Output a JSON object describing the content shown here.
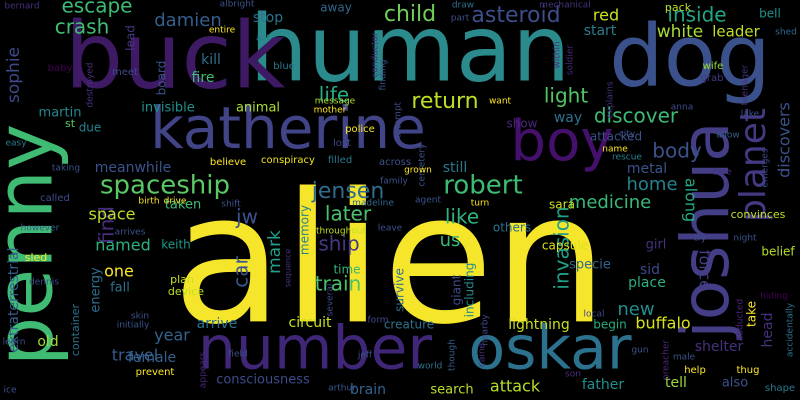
{
  "background": "#000000",
  "words": [
    {
      "text": "alien",
      "color": "#f6e62b"
    },
    {
      "text": "human",
      "color": "#2b8b8c"
    },
    {
      "text": "dog",
      "color": "#3b518b"
    },
    {
      "text": "buck",
      "color": "#3e1a64"
    },
    {
      "text": "katherine",
      "color": "#414487"
    },
    {
      "text": "penny",
      "color": "#3fbb74"
    },
    {
      "text": "joshua",
      "color": "#433e85"
    },
    {
      "text": "boy",
      "color": "#44106c"
    },
    {
      "text": "number",
      "color": "#3f2676"
    },
    {
      "text": "oskar",
      "color": "#2c728e"
    },
    {
      "text": "planet",
      "color": "#443983"
    },
    {
      "text": "spaceship",
      "color": "#5ac864"
    },
    {
      "text": "robert",
      "color": "#3dbc74"
    },
    {
      "text": "jensen",
      "color": "#2f6c8e"
    },
    {
      "text": "child",
      "color": "#6fcf57"
    },
    {
      "text": "asteroid",
      "color": "#3d4e8a"
    },
    {
      "text": "crash",
      "color": "#42be71"
    },
    {
      "text": "escape",
      "color": "#3cbb75"
    },
    {
      "text": "damien",
      "color": "#355e8d"
    },
    {
      "text": "sophie",
      "color": "#3f4889"
    },
    {
      "text": "return",
      "color": "#bddf26"
    },
    {
      "text": "light",
      "color": "#52c569"
    },
    {
      "text": "life",
      "color": "#25ac82"
    },
    {
      "text": "discover",
      "color": "#3bbb75"
    },
    {
      "text": "inside",
      "color": "#21a685"
    },
    {
      "text": "white",
      "color": "#a5db36"
    },
    {
      "text": "leader",
      "color": "#c2df23"
    },
    {
      "text": "red",
      "color": "#cde11d"
    },
    {
      "text": "start",
      "color": "#2a7b8e"
    },
    {
      "text": "discovers",
      "color": "#3b528b"
    },
    {
      "text": "body",
      "color": "#3a538b"
    },
    {
      "text": "home",
      "color": "#26828e"
    },
    {
      "text": "metal",
      "color": "#3b528b"
    },
    {
      "text": "medicine",
      "color": "#38b977"
    },
    {
      "text": "invasion",
      "color": "#1fa187"
    },
    {
      "text": "along",
      "color": "#22a884"
    },
    {
      "text": "like",
      "color": "#2fb47c"
    },
    {
      "text": "us",
      "color": "#35b779"
    },
    {
      "text": "train",
      "color": "#4ac16d"
    },
    {
      "text": "ship",
      "color": "#453781"
    },
    {
      "text": "car",
      "color": "#3a548c"
    },
    {
      "text": "mark",
      "color": "#1fa088"
    },
    {
      "text": "jw",
      "color": "#3b528b"
    },
    {
      "text": "later",
      "color": "#4ac16d"
    },
    {
      "text": "find",
      "color": "#472d7b"
    },
    {
      "text": "space",
      "color": "#bade28"
    },
    {
      "text": "named",
      "color": "#2db27d"
    },
    {
      "text": "one",
      "color": "#fde725"
    },
    {
      "text": "buffalo",
      "color": "#d8e219"
    },
    {
      "text": "new",
      "color": "#228c8d"
    },
    {
      "text": "place",
      "color": "#29af7f"
    },
    {
      "text": "force",
      "color": "#433e85"
    },
    {
      "text": "head",
      "color": "#46307e"
    },
    {
      "text": "take",
      "color": "#fde725"
    },
    {
      "text": "fire",
      "color": "#3fbc73"
    },
    {
      "text": "kill",
      "color": "#2e6f8e"
    },
    {
      "text": "stop",
      "color": "#2c738e"
    },
    {
      "text": "away",
      "color": "#31678e"
    },
    {
      "text": "bell",
      "color": "#20928c"
    },
    {
      "text": "pack",
      "color": "#bddf26"
    },
    {
      "text": "year",
      "color": "#33628d"
    },
    {
      "text": "female",
      "color": "#355f8d"
    },
    {
      "text": "travel",
      "color": "#355f8d"
    },
    {
      "text": "consciousness",
      "color": "#3e4a89"
    },
    {
      "text": "brain",
      "color": "#33638d"
    },
    {
      "text": "attack",
      "color": "#b5de2b"
    },
    {
      "text": "father",
      "color": "#21908d"
    },
    {
      "text": "tell",
      "color": "#9fda3a"
    },
    {
      "text": "also",
      "color": "#3b528b"
    },
    {
      "text": "lightning",
      "color": "#c8e020"
    },
    {
      "text": "begin",
      "color": "#25ab82"
    },
    {
      "text": "creature",
      "color": "#2d718e"
    },
    {
      "text": "circuit",
      "color": "#cae11f"
    },
    {
      "text": "arrive",
      "color": "#2c738e"
    },
    {
      "text": "energy",
      "color": "#2e6d8e"
    },
    {
      "text": "extraterrestrial",
      "color": "#355f8d"
    },
    {
      "text": "martin",
      "color": "#24878e"
    },
    {
      "text": "meanwhile",
      "color": "#3a538b"
    },
    {
      "text": "invisible",
      "color": "#20928c"
    },
    {
      "text": "animal",
      "color": "#addc30"
    },
    {
      "text": "board",
      "color": "#3b528b"
    },
    {
      "text": "lead",
      "color": "#453781"
    },
    {
      "text": "survive",
      "color": "#2e6f8e"
    },
    {
      "text": "including",
      "color": "#238a8d"
    },
    {
      "text": "giant",
      "color": "#3d4d8a"
    },
    {
      "text": "memory",
      "color": "#27808e"
    },
    {
      "text": "time",
      "color": "#32b67a"
    },
    {
      "text": "keith",
      "color": "#1f998a"
    },
    {
      "text": "sid",
      "color": "#3e4989"
    },
    {
      "text": "girl",
      "color": "#46327e"
    },
    {
      "text": "specie",
      "color": "#31678e"
    },
    {
      "text": "shelter",
      "color": "#46307e"
    },
    {
      "text": "attacked",
      "color": "#3c4f8a"
    },
    {
      "text": "others",
      "color": "#2c738e"
    },
    {
      "text": "sara",
      "color": "#d0e11c"
    },
    {
      "text": "capsule",
      "color": "#dde318"
    },
    {
      "text": "still",
      "color": "#2a788e"
    },
    {
      "text": "way",
      "color": "#2c728e"
    },
    {
      "text": "show",
      "color": "#482878"
    },
    {
      "text": "old",
      "color": "#a0da39"
    },
    {
      "text": "taken",
      "color": "#3fbc73"
    },
    {
      "text": "fall",
      "color": "#2d718e"
    },
    {
      "text": "plan",
      "color": "#c5e021"
    },
    {
      "text": "device",
      "color": "#bddf26"
    },
    {
      "text": "search",
      "color": "#bade28"
    },
    {
      "text": "container",
      "color": "#2c718e"
    },
    {
      "text": "due",
      "color": "#26818e"
    },
    {
      "text": "st",
      "color": "#5ec962"
    },
    {
      "text": "baby",
      "color": "#440154"
    },
    {
      "text": "meet",
      "color": "#3e4a89"
    },
    {
      "text": "blue",
      "color": "#2a778e"
    },
    {
      "text": "act",
      "color": "#287c8e"
    },
    {
      "text": "entire",
      "color": "#fde725"
    },
    {
      "text": "albright",
      "color": "#3b528b"
    },
    {
      "text": "believe",
      "color": "#fde725"
    },
    {
      "text": "conspiracy",
      "color": "#f1e51d"
    },
    {
      "text": "filled",
      "color": "#2a788e"
    },
    {
      "text": "police",
      "color": "#fde725"
    },
    {
      "text": "lost",
      "color": "#3f4889"
    },
    {
      "text": "across",
      "color": "#3b528b"
    },
    {
      "text": "mother",
      "color": "#fde725"
    },
    {
      "text": "message",
      "color": "#addc30"
    },
    {
      "text": "want",
      "color": "#fde725"
    },
    {
      "text": "draw",
      "color": "#2d708e"
    },
    {
      "text": "mechanical",
      "color": "#46337f"
    },
    {
      "text": "shed",
      "color": "#31688e"
    },
    {
      "text": "wife",
      "color": "#9bd93c"
    },
    {
      "text": "grab",
      "color": "#443983"
    },
    {
      "text": "teenager",
      "color": "#46327e"
    },
    {
      "text": "anna",
      "color": "#3e4c8a"
    },
    {
      "text": "lake",
      "color": "#3b528b"
    },
    {
      "text": "allow",
      "color": "#355e8d"
    },
    {
      "text": "name",
      "color": "#fde725"
    },
    {
      "text": "rescue",
      "color": "#26828e"
    },
    {
      "text": "care",
      "color": "#46307e"
    },
    {
      "text": "emerges",
      "color": "#3e4a89"
    },
    {
      "text": "convinces",
      "color": "#c2df23"
    },
    {
      "text": "night",
      "color": "#3b528b"
    },
    {
      "text": "try",
      "color": "#3b528b"
    },
    {
      "text": "belief",
      "color": "#b8de29"
    },
    {
      "text": "hiding",
      "color": "#440154"
    },
    {
      "text": "abducted",
      "color": "#482677"
    },
    {
      "text": "thug",
      "color": "#fde725"
    },
    {
      "text": "accidentally",
      "color": "#2c718e"
    },
    {
      "text": "shape",
      "color": "#2a788e"
    },
    {
      "text": "help",
      "color": "#fde725"
    },
    {
      "text": "male",
      "color": "#3b528b"
    },
    {
      "text": "preacher",
      "color": "#482878"
    },
    {
      "text": "gun",
      "color": "#3b528b"
    },
    {
      "text": "son",
      "color": "#472d7b"
    },
    {
      "text": "local",
      "color": "#3e4989"
    },
    {
      "text": "world",
      "color": "#2c728e"
    },
    {
      "text": "though",
      "color": "#355f8d"
    },
    {
      "text": "caine",
      "color": "#46307e"
    },
    {
      "text": "nearby",
      "color": "#3e4a89"
    },
    {
      "text": "arthur",
      "color": "#3b528b"
    },
    {
      "text": "appears",
      "color": "#482878"
    },
    {
      "text": "field",
      "color": "#3b528b"
    },
    {
      "text": "initially",
      "color": "#3a538b"
    },
    {
      "text": "skin",
      "color": "#3b528b"
    },
    {
      "text": "prevent",
      "color": "#fde725"
    },
    {
      "text": "ice",
      "color": "#3b528b"
    },
    {
      "text": "learn",
      "color": "#3b528b"
    },
    {
      "text": "sled",
      "color": "#fde725"
    },
    {
      "text": "dennis",
      "color": "#3e4a89"
    },
    {
      "text": "however",
      "color": "#355f8d"
    },
    {
      "text": "arrives",
      "color": "#3b528b"
    },
    {
      "text": "called",
      "color": "#3e4c8a"
    },
    {
      "text": "taking",
      "color": "#3b528b"
    },
    {
      "text": "easy",
      "color": "#2a788e"
    },
    {
      "text": "jeff",
      "color": "#3b528b"
    },
    {
      "text": "several",
      "color": "#3e4989"
    },
    {
      "text": "throughout",
      "color": "#c2df23"
    },
    {
      "text": "form",
      "color": "#3e4a89"
    },
    {
      "text": "madeline",
      "color": "#31688e"
    },
    {
      "text": "leave",
      "color": "#3b528b"
    },
    {
      "text": "agent",
      "color": "#3b528b"
    },
    {
      "text": "turn",
      "color": "#fde725"
    },
    {
      "text": "cemetery",
      "color": "#3b528b"
    },
    {
      "text": "family",
      "color": "#3b528b"
    },
    {
      "text": "birth",
      "color": "#fde725"
    },
    {
      "text": "drive",
      "color": "#fde725"
    },
    {
      "text": "shift",
      "color": "#3b528b"
    },
    {
      "text": "explains",
      "color": "#46307e"
    },
    {
      "text": "city",
      "color": "#3b528b"
    },
    {
      "text": "soldier",
      "color": "#482878"
    },
    {
      "text": "within",
      "color": "#46307e"
    },
    {
      "text": "conductor",
      "color": "#46307e"
    },
    {
      "text": "finding",
      "color": "#3b528b"
    },
    {
      "text": "part",
      "color": "#3b528b"
    },
    {
      "text": "destroyed",
      "color": "#46307e"
    },
    {
      "text": "bernard",
      "color": "#46307e"
    },
    {
      "text": "attempt",
      "color": "#3e4a89"
    },
    {
      "text": "grown",
      "color": "#fde725"
    },
    {
      "text": "sequence",
      "color": "#46307e"
    }
  ]
}
